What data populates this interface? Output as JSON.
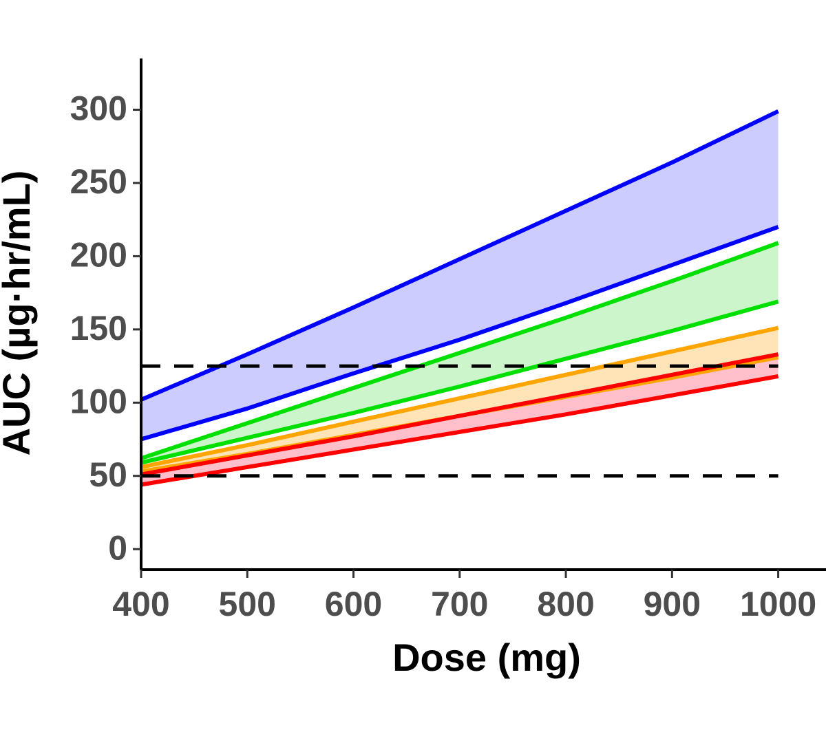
{
  "chart_data": {
    "type": "line",
    "x_label": "Dose (mg)",
    "y_label": "AUC (µg·hr/mL)",
    "x": [
      400,
      500,
      600,
      700,
      800,
      900,
      1000
    ],
    "xlim": [
      400,
      1045
    ],
    "xticks": [
      400,
      500,
      600,
      700,
      800,
      900,
      1000
    ],
    "ylim": [
      -14,
      335
    ],
    "yticks": [
      0,
      50,
      100,
      150,
      200,
      250,
      300
    ],
    "reference_lines": [
      {
        "value": 125,
        "color": "#000000",
        "dashed": true
      },
      {
        "value": 50,
        "color": "#000000",
        "dashed": true
      }
    ],
    "series": [
      {
        "color": "#0000ff",
        "fill": "#ccccff",
        "upper": [
          102,
          133,
          165,
          198,
          231,
          264,
          299
        ],
        "lower": [
          75,
          96,
          120,
          143,
          168,
          194,
          220
        ]
      },
      {
        "color": "#00e000",
        "fill": "#ccf5cc",
        "upper": [
          62,
          86,
          110,
          134,
          158,
          183,
          209
        ],
        "lower": [
          59,
          76,
          93,
          111,
          130,
          149,
          169
        ]
      },
      {
        "color": "#ffa500",
        "fill": "#ffe4b8",
        "upper": [
          56,
          71,
          87,
          103,
          119,
          135,
          151
        ],
        "lower": [
          53,
          65,
          78,
          91,
          104,
          117,
          131
        ]
      },
      {
        "color": "#ff0000",
        "fill": "#ffc0cb",
        "upper": [
          51,
          64,
          77,
          91,
          105,
          119,
          133
        ],
        "lower": [
          44,
          56,
          68,
          80,
          92,
          105,
          118
        ]
      }
    ]
  }
}
